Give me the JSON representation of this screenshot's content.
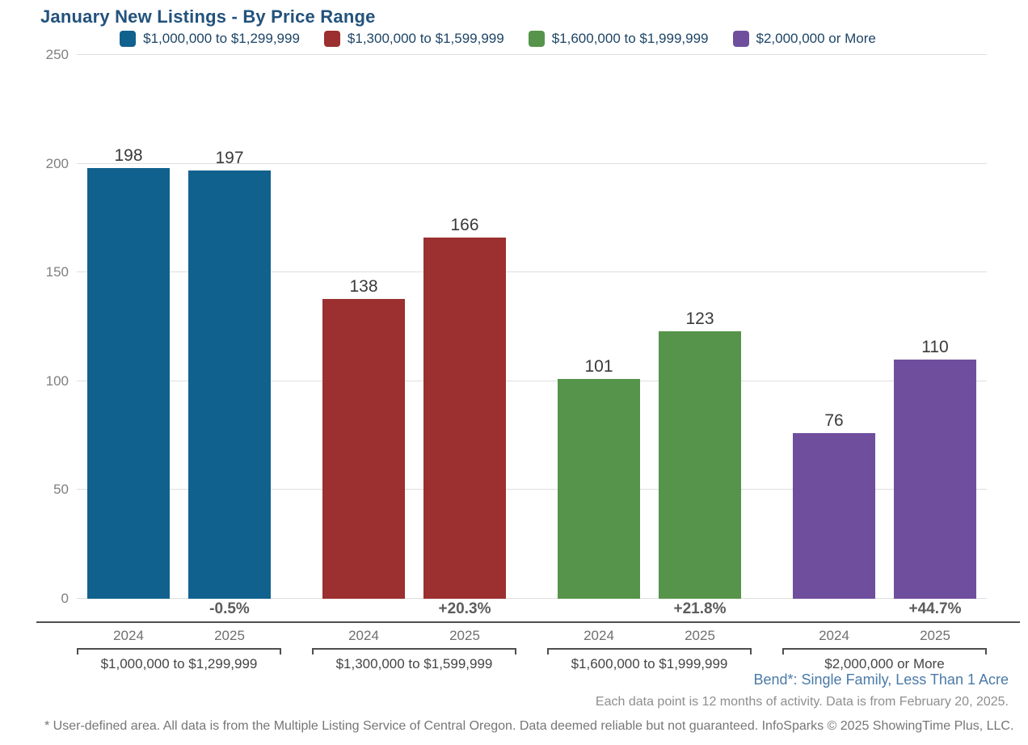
{
  "title": "January New Listings - By Price Range",
  "chart_data": {
    "type": "bar",
    "title": "January New Listings - By Price Range",
    "categories": [
      "2024",
      "2025"
    ],
    "ylim": [
      0,
      250
    ],
    "yticks": [
      0,
      50,
      100,
      150,
      200,
      250
    ],
    "grid": true,
    "legend_position": "top",
    "groups": [
      {
        "label": "$1,000,000 to $1,299,999",
        "color": "#11618e",
        "values": [
          198,
          197
        ],
        "change": "-0.5%"
      },
      {
        "label": "$1,300,000 to $1,599,999",
        "color": "#9c2f2f",
        "values": [
          138,
          166
        ],
        "change": "+20.3%"
      },
      {
        "label": "$1,600,000 to $1,999,999",
        "color": "#55944a",
        "values": [
          101,
          123
        ],
        "change": "+21.8%"
      },
      {
        "label": "$2,000,000 or More",
        "color": "#6f4f9d",
        "values": [
          76,
          110
        ],
        "change": "+44.7%"
      }
    ]
  },
  "footer": {
    "area_line": "Bend*: Single Family, Less Than 1 Acre",
    "data_note": "Each data point is 12 months of activity. Data is from February 20, 2025.",
    "disclaimer": "* User-defined area. All data is from the Multiple Listing Service of Central Oregon. Data deemed reliable but not guaranteed. InfoSparks © 2025 ShowingTime Plus, LLC."
  }
}
